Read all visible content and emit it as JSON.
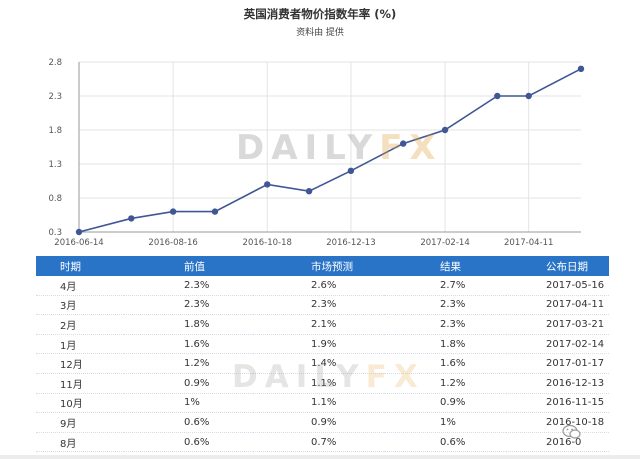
{
  "title": "英国消费者物价指数年率 (%)",
  "subtitle": "资料由 提供",
  "watermark": {
    "part1": "DAILY",
    "part2": "FX"
  },
  "chart_data": {
    "type": "line",
    "title": "英国消费者物价指数年率 (%)",
    "x": [
      "2016-06-14",
      "2016-07-19",
      "2016-08-16",
      "2016-09-13",
      "2016-10-18",
      "2016-11-15",
      "2016-12-13",
      "2017-01-17",
      "2017-02-14",
      "2017-03-21",
      "2017-04-11",
      "2017-05-16"
    ],
    "series": [
      {
        "values": [
          0.3,
          0.5,
          0.6,
          0.6,
          1.0,
          0.9,
          1.2,
          1.6,
          1.8,
          2.3,
          2.3,
          2.7
        ]
      }
    ],
    "xticks": [
      "2016-06-14",
      "2016-08-16",
      "2016-10-18",
      "2016-12-13",
      "2017-02-14",
      "2017-04-11"
    ],
    "yticks": [
      "0.3",
      "0.8",
      "1.3",
      "1.8",
      "2.3",
      "2.8"
    ],
    "ylim": [
      0.3,
      2.8
    ],
    "grid": true,
    "line_color": "#3f5795"
  },
  "table": {
    "headers": [
      "时期",
      "前值",
      "市场预测",
      "结果",
      "公布日期"
    ],
    "rows": [
      [
        "4月",
        "2.3%",
        "2.6%",
        "2.7%",
        "2017-05-16"
      ],
      [
        "3月",
        "2.3%",
        "2.3%",
        "2.3%",
        "2017-04-11"
      ],
      [
        "2月",
        "1.8%",
        "2.1%",
        "2.3%",
        "2017-03-21"
      ],
      [
        "1月",
        "1.6%",
        "1.9%",
        "1.8%",
        "2017-02-14"
      ],
      [
        "12月",
        "1.2%",
        "1.4%",
        "1.6%",
        "2017-01-17"
      ],
      [
        "11月",
        "0.9%",
        "1.1%",
        "1.2%",
        "2016-12-13"
      ],
      [
        "10月",
        "1%",
        "1.1%",
        "0.9%",
        "2016-11-15"
      ],
      [
        "9月",
        "0.6%",
        "0.9%",
        "1%",
        "2016-10-18"
      ],
      [
        "8月",
        "0.6%",
        "0.7%",
        "0.6%",
        "2016-0"
      ]
    ]
  },
  "colors": {
    "header_bg": "#2a74c8",
    "line": "#3f5795",
    "grid": "#e3e3e3"
  }
}
